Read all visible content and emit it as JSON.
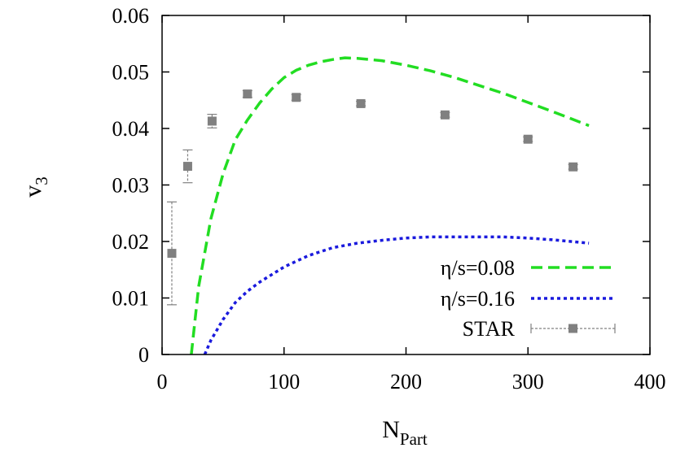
{
  "chart_data": {
    "type": "line",
    "xlabel": {
      "main": "N",
      "sub": "Part"
    },
    "ylabel": {
      "main": "v",
      "sub": "3"
    },
    "xlim": [
      0,
      400
    ],
    "ylim": [
      0,
      0.06
    ],
    "xticks": [
      "0",
      "100",
      "200",
      "300",
      "400"
    ],
    "yticks": [
      "0",
      "0.01",
      "0.02",
      "0.03",
      "0.04",
      "0.05",
      "0.06"
    ],
    "grid": false,
    "legend_position": "bottom-right",
    "series": [
      {
        "name": "η/s=0.08",
        "style": "dashed",
        "color": "#22dd22",
        "x": [
          24,
          30,
          40,
          50,
          60,
          70,
          80,
          90,
          100,
          110,
          120,
          130,
          140,
          150,
          160,
          180,
          200,
          220,
          240,
          260,
          280,
          300,
          320,
          350
        ],
        "y": [
          0.0,
          0.012,
          0.024,
          0.032,
          0.038,
          0.0415,
          0.0445,
          0.047,
          0.049,
          0.0503,
          0.0512,
          0.0518,
          0.0522,
          0.0525,
          0.0524,
          0.052,
          0.0512,
          0.0502,
          0.049,
          0.0476,
          0.0462,
          0.0446,
          0.043,
          0.0405
        ]
      },
      {
        "name": "η/s=0.16",
        "style": "dotted",
        "color": "#1a1add",
        "x": [
          35,
          40,
          50,
          60,
          70,
          80,
          100,
          120,
          140,
          160,
          180,
          200,
          220,
          240,
          260,
          280,
          300,
          320,
          350
        ],
        "y": [
          0.0,
          0.0025,
          0.0062,
          0.0092,
          0.0112,
          0.0128,
          0.0155,
          0.0175,
          0.0189,
          0.0197,
          0.0202,
          0.0206,
          0.0208,
          0.0208,
          0.0208,
          0.0208,
          0.0206,
          0.0203,
          0.0197
        ]
      },
      {
        "name": "STAR",
        "style": "points",
        "color": "#808080",
        "x": [
          8,
          21,
          41,
          70,
          110,
          163,
          232,
          300,
          337
        ],
        "y": [
          0.0179,
          0.0333,
          0.0413,
          0.0461,
          0.0455,
          0.0444,
          0.0424,
          0.0381,
          0.0332
        ],
        "yerr": [
          0.0091,
          0.0029,
          0.0012,
          0.0006,
          0.0005,
          0.0004,
          0.0004,
          0.0004,
          0.0004
        ]
      }
    ]
  }
}
